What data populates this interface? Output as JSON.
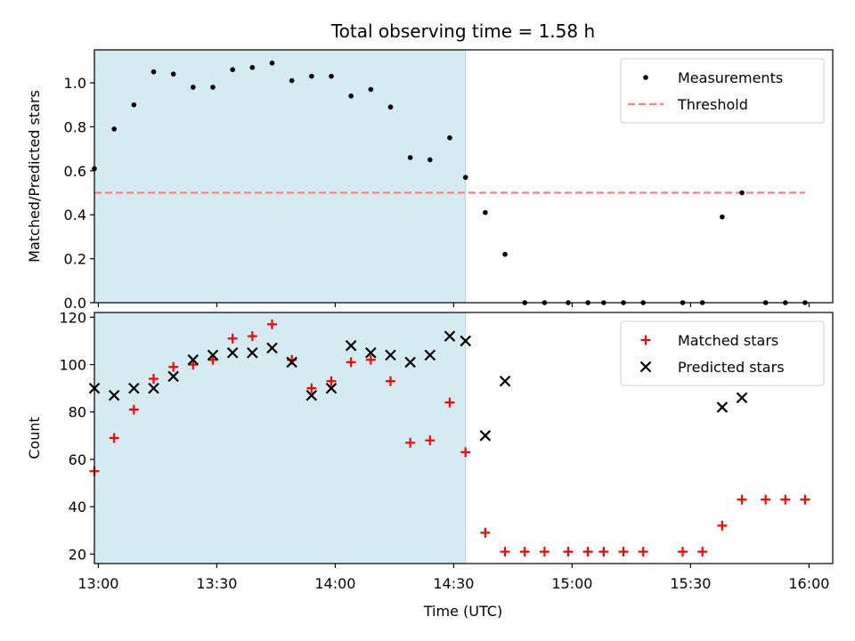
{
  "chart_data": {
    "title": "Total observing time = 1.58 h",
    "xlabel": "Time (UTC)",
    "x_tick_labels": [
      "13:00",
      "13:30",
      "14:00",
      "14:30",
      "15:00",
      "15:30",
      "16:00"
    ],
    "x_tick_minutes": [
      780,
      810,
      840,
      870,
      900,
      930,
      960
    ],
    "xlim": [
      "12:59",
      "16:06"
    ],
    "shaded_interval": [
      "12:59",
      "14:33"
    ],
    "colors": {
      "shade": "#add8e6",
      "measurement": "#000000",
      "threshold": "#ff7f7f",
      "matched": "#ff0000",
      "predicted": "#000000"
    },
    "panels": [
      {
        "type": "scatter",
        "ylabel": "Matched/Predicted stars",
        "ylim": [
          0,
          1.15
        ],
        "y_ticks": [
          0.0,
          0.2,
          0.4,
          0.6,
          0.8,
          1.0
        ],
        "y_tick_labels": [
          "0.0",
          "0.2",
          "0.4",
          "0.6",
          "0.8",
          "1.0"
        ],
        "legend": "top-right",
        "threshold": {
          "name": "Threshold",
          "value": 0.5,
          "from": "12:59",
          "to": "15:59"
        },
        "series": [
          {
            "name": "Measurements",
            "marker": "dot",
            "points": [
              [
                "12:59",
                0.61
              ],
              [
                "13:04",
                0.79
              ],
              [
                "13:09",
                0.9
              ],
              [
                "13:14",
                1.05
              ],
              [
                "13:19",
                1.04
              ],
              [
                "13:24",
                0.98
              ],
              [
                "13:29",
                0.98
              ],
              [
                "13:34",
                1.06
              ],
              [
                "13:39",
                1.07
              ],
              [
                "13:44",
                1.09
              ],
              [
                "13:49",
                1.01
              ],
              [
                "13:54",
                1.03
              ],
              [
                "13:59",
                1.03
              ],
              [
                "14:04",
                0.94
              ],
              [
                "14:09",
                0.97
              ],
              [
                "14:14",
                0.89
              ],
              [
                "14:19",
                0.66
              ],
              [
                "14:24",
                0.65
              ],
              [
                "14:29",
                0.75
              ],
              [
                "14:33",
                0.57
              ],
              [
                "14:38",
                0.41
              ],
              [
                "14:43",
                0.22
              ],
              [
                "14:48",
                0.0
              ],
              [
                "14:53",
                0.0
              ],
              [
                "14:59",
                0.0
              ],
              [
                "15:04",
                0.0
              ],
              [
                "15:08",
                0.0
              ],
              [
                "15:13",
                0.0
              ],
              [
                "15:18",
                0.0
              ],
              [
                "15:28",
                0.0
              ],
              [
                "15:33",
                0.0
              ],
              [
                "15:38",
                0.39
              ],
              [
                "15:43",
                0.5
              ],
              [
                "15:49",
                0.0
              ],
              [
                "15:54",
                0.0
              ],
              [
                "15:59",
                0.0
              ]
            ]
          }
        ]
      },
      {
        "type": "scatter",
        "ylabel": "Count",
        "ylim": [
          16,
          122
        ],
        "y_ticks": [
          20,
          40,
          60,
          80,
          100,
          120
        ],
        "y_tick_labels": [
          "20",
          "40",
          "60",
          "80",
          "100",
          "120"
        ],
        "legend": "top-right",
        "series": [
          {
            "name": "Matched stars",
            "marker": "plus",
            "points": [
              [
                "12:59",
                55
              ],
              [
                "13:04",
                69
              ],
              [
                "13:09",
                81
              ],
              [
                "13:14",
                94
              ],
              [
                "13:19",
                99
              ],
              [
                "13:24",
                100
              ],
              [
                "13:29",
                102
              ],
              [
                "13:34",
                111
              ],
              [
                "13:39",
                112
              ],
              [
                "13:44",
                117
              ],
              [
                "13:49",
                102
              ],
              [
                "13:54",
                90
              ],
              [
                "13:59",
                93
              ],
              [
                "14:04",
                101
              ],
              [
                "14:09",
                102
              ],
              [
                "14:14",
                93
              ],
              [
                "14:19",
                67
              ],
              [
                "14:24",
                68
              ],
              [
                "14:29",
                84
              ],
              [
                "14:33",
                63
              ],
              [
                "14:38",
                29
              ],
              [
                "14:43",
                21
              ],
              [
                "14:48",
                21
              ],
              [
                "14:53",
                21
              ],
              [
                "14:59",
                21
              ],
              [
                "15:04",
                21
              ],
              [
                "15:08",
                21
              ],
              [
                "15:13",
                21
              ],
              [
                "15:18",
                21
              ],
              [
                "15:28",
                21
              ],
              [
                "15:33",
                21
              ],
              [
                "15:38",
                32
              ],
              [
                "15:43",
                43
              ],
              [
                "15:49",
                43
              ],
              [
                "15:54",
                43
              ],
              [
                "15:59",
                43
              ]
            ]
          },
          {
            "name": "Predicted stars",
            "marker": "x",
            "points": [
              [
                "12:59",
                90
              ],
              [
                "13:04",
                87
              ],
              [
                "13:09",
                90
              ],
              [
                "13:14",
                90
              ],
              [
                "13:19",
                95
              ],
              [
                "13:24",
                102
              ],
              [
                "13:29",
                104
              ],
              [
                "13:34",
                105
              ],
              [
                "13:39",
                105
              ],
              [
                "13:44",
                107
              ],
              [
                "13:49",
                101
              ],
              [
                "13:54",
                87
              ],
              [
                "13:59",
                90
              ],
              [
                "14:04",
                108
              ],
              [
                "14:09",
                105
              ],
              [
                "14:14",
                104
              ],
              [
                "14:19",
                101
              ],
              [
                "14:24",
                104
              ],
              [
                "14:29",
                112
              ],
              [
                "14:33",
                110
              ],
              [
                "14:38",
                70
              ],
              [
                "14:43",
                93
              ],
              [
                "15:38",
                82
              ],
              [
                "15:43",
                86
              ]
            ]
          }
        ]
      }
    ]
  }
}
